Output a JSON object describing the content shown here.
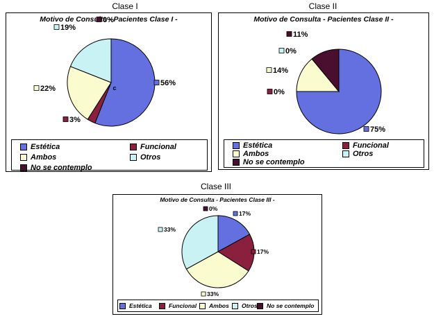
{
  "chart_data": [
    {
      "type": "pie",
      "heading": "Clase I",
      "title": "Motivo de Consulta - Pacientes Clase I -",
      "center_label": "c",
      "categories": [
        "Estética",
        "Funcional",
        "Ambos",
        "Otros",
        "No se contemplo"
      ],
      "values": [
        56,
        3,
        22,
        19,
        0
      ],
      "value_labels": [
        "56%",
        "3%",
        "22%",
        "19%",
        "0%"
      ],
      "colors": [
        "#6470e0",
        "#8a1f3e",
        "#fbfbd0",
        "#c8f2f3",
        "#4a0f2f"
      ]
    },
    {
      "type": "pie",
      "heading": "Clase II",
      "title": "Motivo de Consulta - Pacientes Clase II -",
      "categories": [
        "Estética",
        "Funcional",
        "Ambos",
        "Otros",
        "No se contemplo"
      ],
      "values": [
        75,
        0,
        14,
        0,
        11
      ],
      "value_labels": [
        "75%",
        "0%",
        "14%",
        "0%",
        "11%"
      ],
      "colors": [
        "#6470e0",
        "#8a1f3e",
        "#fbfbd0",
        "#c8f2f3",
        "#4a0f2f"
      ]
    },
    {
      "type": "pie",
      "heading": "Clase III",
      "title": "Motivo de Consulta - Pacientes Clase III -",
      "categories": [
        "Estética",
        "Funcional",
        "Ambos",
        "Otros",
        "No se contemplo"
      ],
      "values": [
        17,
        17,
        33,
        33,
        0
      ],
      "value_labels": [
        "17%",
        "17%",
        "33%",
        "33%",
        "0%"
      ],
      "colors": [
        "#6470e0",
        "#8a1f3e",
        "#fbfbd0",
        "#c8f2f3",
        "#4a0f2f"
      ]
    }
  ]
}
